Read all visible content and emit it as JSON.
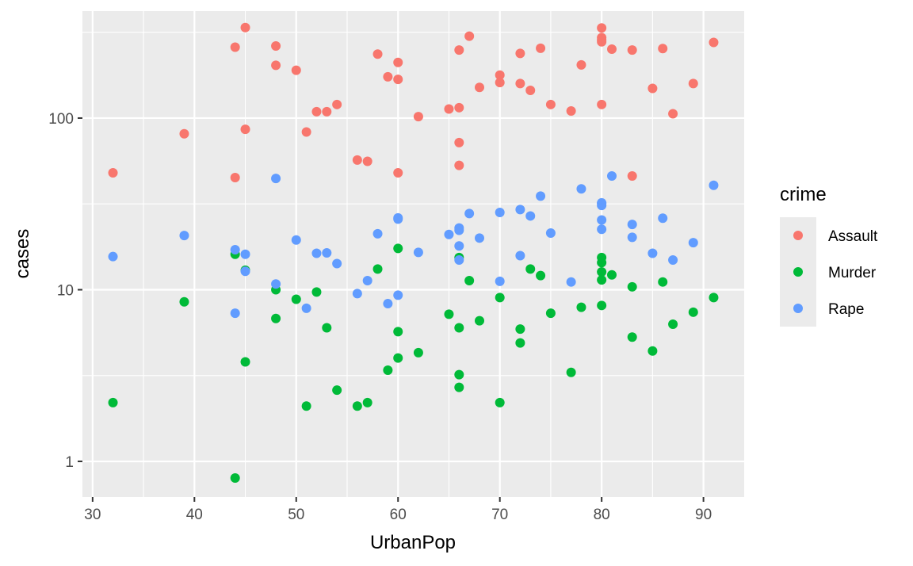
{
  "chart_data": {
    "type": "scatter",
    "title": "",
    "xlabel": "UrbanPop",
    "ylabel": "cases",
    "xlim": [
      29,
      94
    ],
    "ylim": [
      0.62,
      420
    ],
    "y_scale": "log10",
    "x_ticks": [
      30,
      40,
      50,
      60,
      70,
      80,
      90
    ],
    "y_ticks": [
      1,
      10,
      100
    ],
    "grid": true,
    "legend": {
      "title": "crime",
      "position": "right"
    },
    "series": [
      {
        "name": "Assault",
        "color": "#F8766D",
        "points": [
          [
            58,
            236
          ],
          [
            48,
            263
          ],
          [
            80,
            294
          ],
          [
            50,
            190
          ],
          [
            91,
            276
          ],
          [
            78,
            204
          ],
          [
            77,
            110
          ],
          [
            72,
            238
          ],
          [
            80,
            335
          ],
          [
            60,
            211
          ],
          [
            83,
            46
          ],
          [
            54,
            120
          ],
          [
            83,
            249
          ],
          [
            65,
            113
          ],
          [
            57,
            56
          ],
          [
            66,
            115
          ],
          [
            52,
            109
          ],
          [
            66,
            249
          ],
          [
            51,
            83
          ],
          [
            67,
            300
          ],
          [
            85,
            149
          ],
          [
            74,
            255
          ],
          [
            66,
            72
          ],
          [
            44,
            259
          ],
          [
            70,
            178
          ],
          [
            53,
            109
          ],
          [
            62,
            102
          ],
          [
            81,
            252
          ],
          [
            56,
            57
          ],
          [
            89,
            159
          ],
          [
            80,
            285
          ],
          [
            86,
            254
          ],
          [
            45,
            337
          ],
          [
            44,
            45
          ],
          [
            75,
            120
          ],
          [
            68,
            151
          ],
          [
            72,
            159
          ],
          [
            87,
            106
          ],
          [
            59,
            174
          ],
          [
            80,
            278
          ],
          [
            45,
            86
          ],
          [
            73,
            145
          ],
          [
            80,
            120
          ],
          [
            66,
            53
          ],
          [
            70,
            161
          ],
          [
            39,
            81
          ],
          [
            60,
            48
          ],
          [
            60,
            168
          ],
          [
            48,
            203
          ],
          [
            32,
            48
          ]
        ]
      },
      {
        "name": "Murder",
        "color": "#00BA38",
        "points": [
          [
            58,
            13.2
          ],
          [
            48,
            10.0
          ],
          [
            80,
            8.1
          ],
          [
            50,
            8.8
          ],
          [
            91,
            9.0
          ],
          [
            78,
            7.9
          ],
          [
            77,
            3.3
          ],
          [
            72,
            5.9
          ],
          [
            80,
            15.4
          ],
          [
            60,
            17.4
          ],
          [
            83,
            5.3
          ],
          [
            54,
            2.6
          ],
          [
            83,
            10.4
          ],
          [
            65,
            7.2
          ],
          [
            57,
            2.2
          ],
          [
            66,
            6.0
          ],
          [
            52,
            9.7
          ],
          [
            66,
            15.4
          ],
          [
            51,
            2.1
          ],
          [
            67,
            11.3
          ],
          [
            85,
            4.4
          ],
          [
            74,
            12.1
          ],
          [
            66,
            2.7
          ],
          [
            44,
            16.1
          ],
          [
            70,
            9.0
          ],
          [
            53,
            6.0
          ],
          [
            62,
            4.3
          ],
          [
            81,
            12.2
          ],
          [
            56,
            2.1
          ],
          [
            89,
            7.4
          ],
          [
            80,
            11.4
          ],
          [
            86,
            11.1
          ],
          [
            45,
            13.0
          ],
          [
            44,
            0.8
          ],
          [
            75,
            7.3
          ],
          [
            68,
            6.6
          ],
          [
            72,
            4.9
          ],
          [
            87,
            6.3
          ],
          [
            59,
            3.4
          ],
          [
            80,
            14.4
          ],
          [
            45,
            3.8
          ],
          [
            73,
            13.2
          ],
          [
            80,
            12.7
          ],
          [
            66,
            3.2
          ],
          [
            70,
            2.2
          ],
          [
            39,
            8.5
          ],
          [
            60,
            4.0
          ],
          [
            60,
            5.7
          ],
          [
            48,
            6.8
          ],
          [
            32,
            2.2
          ]
        ]
      },
      {
        "name": "Rape",
        "color": "#619CFF",
        "points": [
          [
            58,
            21.2
          ],
          [
            48,
            44.5
          ],
          [
            80,
            31.0
          ],
          [
            50,
            19.5
          ],
          [
            91,
            40.6
          ],
          [
            78,
            38.7
          ],
          [
            77,
            11.1
          ],
          [
            72,
            15.8
          ],
          [
            80,
            31.9
          ],
          [
            60,
            25.8
          ],
          [
            83,
            20.2
          ],
          [
            54,
            14.2
          ],
          [
            83,
            24.0
          ],
          [
            65,
            21.0
          ],
          [
            57,
            11.3
          ],
          [
            66,
            18.0
          ],
          [
            52,
            16.3
          ],
          [
            66,
            22.2
          ],
          [
            51,
            7.8
          ],
          [
            67,
            27.8
          ],
          [
            85,
            16.3
          ],
          [
            74,
            35.1
          ],
          [
            66,
            14.9
          ],
          [
            44,
            17.1
          ],
          [
            70,
            28.2
          ],
          [
            53,
            16.4
          ],
          [
            62,
            16.5
          ],
          [
            81,
            46.0
          ],
          [
            56,
            9.5
          ],
          [
            89,
            18.8
          ],
          [
            80,
            32.1
          ],
          [
            86,
            26.1
          ],
          [
            45,
            16.1
          ],
          [
            44,
            7.3
          ],
          [
            75,
            21.4
          ],
          [
            68,
            20.0
          ],
          [
            72,
            29.3
          ],
          [
            87,
            14.9
          ],
          [
            59,
            8.3
          ],
          [
            80,
            22.5
          ],
          [
            45,
            12.8
          ],
          [
            73,
            26.9
          ],
          [
            80,
            25.5
          ],
          [
            66,
            22.9
          ],
          [
            70,
            11.2
          ],
          [
            39,
            20.7
          ],
          [
            60,
            26.2
          ],
          [
            60,
            9.3
          ],
          [
            48,
            10.8
          ],
          [
            32,
            15.6
          ]
        ]
      }
    ]
  }
}
